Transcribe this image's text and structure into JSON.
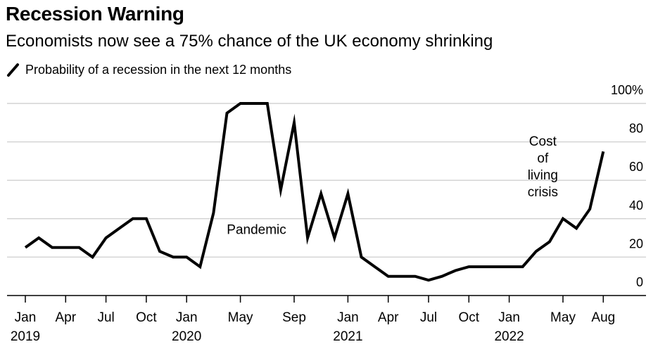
{
  "header": {
    "title": "Recession Warning",
    "subtitle": "Economists now see a 75% chance of the UK economy shrinking"
  },
  "chart_data": {
    "type": "line",
    "title": "Recession Warning",
    "subtitle": "Economists now see a 75% chance of the UK economy shrinking",
    "xlabel": "",
    "ylabel": "",
    "ylim": [
      0,
      100
    ],
    "y_ticks": [
      0,
      20,
      40,
      60,
      80,
      100
    ],
    "y_tick_labels": [
      "0",
      "20",
      "40",
      "60",
      "80",
      "100%"
    ],
    "grid": true,
    "line_color": "#000000",
    "series": [
      {
        "name": "Probability of a recession in the next 12 months",
        "x_month_index": [
          0,
          1,
          2,
          3,
          4,
          5,
          6,
          7,
          8,
          9,
          10,
          11,
          12,
          13,
          14,
          15,
          16,
          17,
          18,
          19,
          20,
          21,
          22,
          23,
          24,
          25,
          26,
          27,
          28,
          29,
          30,
          31,
          32,
          33,
          34,
          35,
          36,
          37,
          38,
          39,
          40,
          41,
          42,
          43
        ],
        "values": [
          25,
          30,
          25,
          25,
          25,
          20,
          30,
          35,
          40,
          40,
          23,
          20,
          20,
          15,
          43,
          95,
          100,
          100,
          100,
          55,
          90,
          30,
          53,
          30,
          53,
          20,
          15,
          10,
          10,
          10,
          8,
          10,
          13,
          15,
          15,
          15,
          15,
          15,
          23,
          28,
          40,
          35,
          45,
          75
        ]
      }
    ],
    "x_ticks": [
      {
        "month_index": 0,
        "label": "Jan",
        "year": "2019"
      },
      {
        "month_index": 3,
        "label": "Apr",
        "year": ""
      },
      {
        "month_index": 6,
        "label": "Jul",
        "year": ""
      },
      {
        "month_index": 9,
        "label": "Oct",
        "year": ""
      },
      {
        "month_index": 12,
        "label": "Jan",
        "year": "2020"
      },
      {
        "month_index": 16,
        "label": "May",
        "year": ""
      },
      {
        "month_index": 20,
        "label": "Sep",
        "year": ""
      },
      {
        "month_index": 24,
        "label": "Jan",
        "year": "2021"
      },
      {
        "month_index": 27,
        "label": "Apr",
        "year": ""
      },
      {
        "month_index": 30,
        "label": "Jul",
        "year": ""
      },
      {
        "month_index": 33,
        "label": "Oct",
        "year": ""
      },
      {
        "month_index": 36,
        "label": "Jan",
        "year": "2022"
      },
      {
        "month_index": 40,
        "label": "May",
        "year": ""
      },
      {
        "month_index": 43,
        "label": "Aug",
        "year": ""
      }
    ],
    "x_range_month_index": [
      -1,
      46
    ],
    "annotations": [
      {
        "text": "Pandemic",
        "month_index": 17.2,
        "value": 32
      },
      {
        "text": "Cost\nof\nliving\ncrisis",
        "month_index": 38.5,
        "value": 78
      }
    ],
    "legend": {
      "label": "Probability of a recession in the next 12 months",
      "placement": "top-left"
    }
  }
}
